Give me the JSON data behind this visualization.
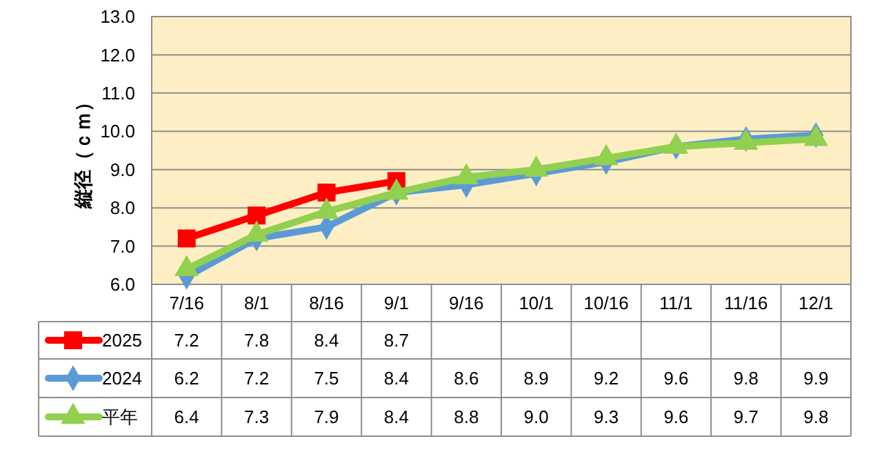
{
  "chart_data": {
    "type": "line",
    "ylabel": "縦径（ｃｍ）",
    "categories": [
      "7/16",
      "8/1",
      "8/16",
      "9/1",
      "9/16",
      "10/1",
      "10/16",
      "11/1",
      "11/16",
      "12/1"
    ],
    "ylim": [
      6,
      13
    ],
    "yticks": [
      {
        "value": 6,
        "label": "6.0"
      },
      {
        "value": 7,
        "label": "7.0"
      },
      {
        "value": 8,
        "label": "8.0"
      },
      {
        "value": 9,
        "label": "9.0"
      },
      {
        "value": 10,
        "label": "10.0"
      },
      {
        "value": 11,
        "label": "11.0"
      },
      {
        "value": 12,
        "label": "12.0"
      },
      {
        "value": 13,
        "label": "13.0"
      }
    ],
    "grid": "y",
    "legend": "bottom left",
    "data_labels": true,
    "series": [
      {
        "name": "2025",
        "color": "#ff0000",
        "marker": "square",
        "values": [
          7.2,
          7.8,
          8.4,
          8.7,
          null,
          null,
          null,
          null,
          null,
          null
        ],
        "value_labels": [
          "7.2",
          "7.8",
          "8.4",
          "8.7",
          null,
          null,
          null,
          null,
          null,
          null
        ]
      },
      {
        "name": "2024",
        "color": "#5b9bd5",
        "marker": "diamond",
        "values": [
          6.2,
          7.2,
          7.5,
          8.4,
          8.6,
          8.9,
          9.2,
          9.6,
          9.8,
          9.9
        ],
        "value_labels": [
          "6.2",
          "7.2",
          "7.5",
          "8.4",
          "8.6",
          "8.9",
          "9.2",
          "9.6",
          "9.8",
          "9.9"
        ]
      },
      {
        "name": "平年",
        "color": "#92d050",
        "marker": "triangle",
        "values": [
          6.4,
          7.3,
          7.9,
          8.4,
          8.8,
          9.0,
          9.3,
          9.6,
          9.7,
          9.8
        ],
        "value_labels": [
          "6.4",
          "7.3",
          "7.9",
          "8.4",
          "8.8",
          "9.0",
          "9.3",
          "9.6",
          "9.7",
          "9.8"
        ]
      }
    ]
  }
}
